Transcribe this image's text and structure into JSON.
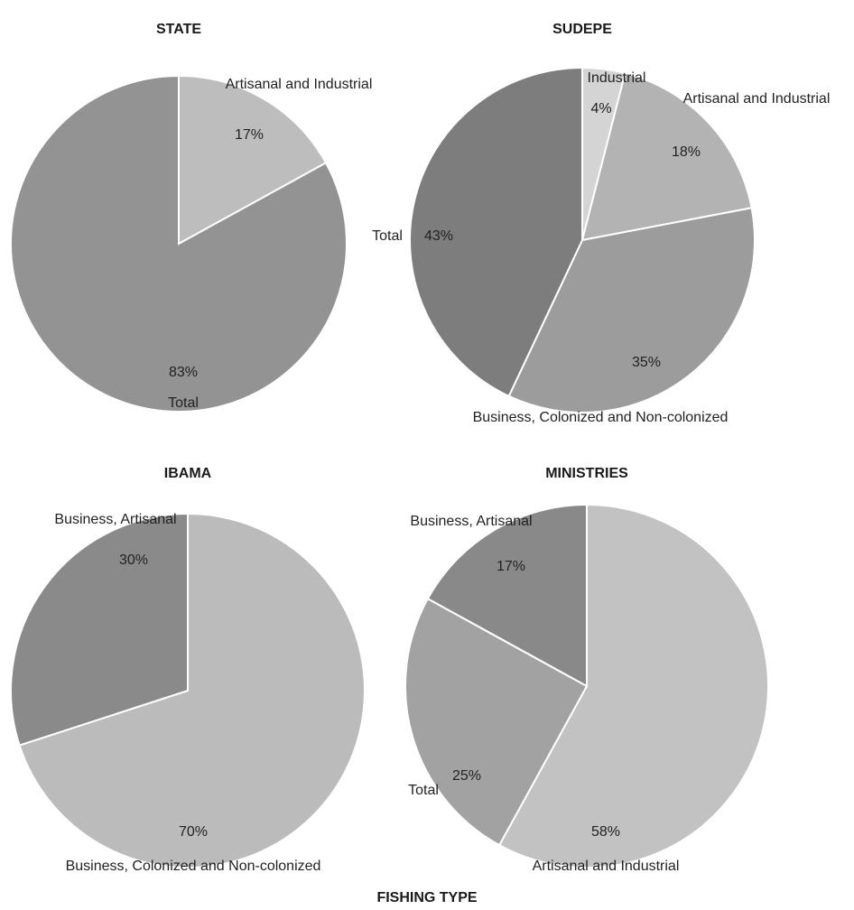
{
  "footer_title": "FISHING TYPE",
  "chart_data": [
    {
      "type": "pie",
      "title": "STATE",
      "slices": [
        {
          "label": "Artisanal and Industrial",
          "value": 17,
          "value_label": "17%",
          "color": "#bdbdbd"
        },
        {
          "label": "Total",
          "value": 83,
          "value_label": "83%",
          "color": "#939393"
        }
      ]
    },
    {
      "type": "pie",
      "title": "SUDEPE",
      "slices": [
        {
          "label": "Industrial",
          "value": 4,
          "value_label": "4%",
          "color": "#d4d4d4"
        },
        {
          "label": "Artisanal and Industrial",
          "value": 18,
          "value_label": "18%",
          "color": "#b3b3b3"
        },
        {
          "label": "Business, Colonized and Non-colonized",
          "value": 35,
          "value_label": "35%",
          "color": "#9c9c9c"
        },
        {
          "label": "Total",
          "value": 43,
          "value_label": "43%",
          "color": "#7d7d7d"
        }
      ]
    },
    {
      "type": "pie",
      "title": "IBAMA",
      "slices": [
        {
          "label": "Business, Colonized and Non-colonized",
          "value": 70,
          "value_label": "70%",
          "color": "#bbbbbb"
        },
        {
          "label": "Business, Artisanal",
          "value": 30,
          "value_label": "30%",
          "color": "#8a8a8a"
        }
      ]
    },
    {
      "type": "pie",
      "title": "MINISTRIES",
      "slices": [
        {
          "label": "Artisanal and Industrial",
          "value": 58,
          "value_label": "58%",
          "color": "#c2c2c2"
        },
        {
          "label": "Total",
          "value": 25,
          "value_label": "25%",
          "color": "#a2a2a2"
        },
        {
          "label": "Business, Artisanal",
          "value": 17,
          "value_label": "17%",
          "color": "#898989"
        }
      ]
    }
  ]
}
